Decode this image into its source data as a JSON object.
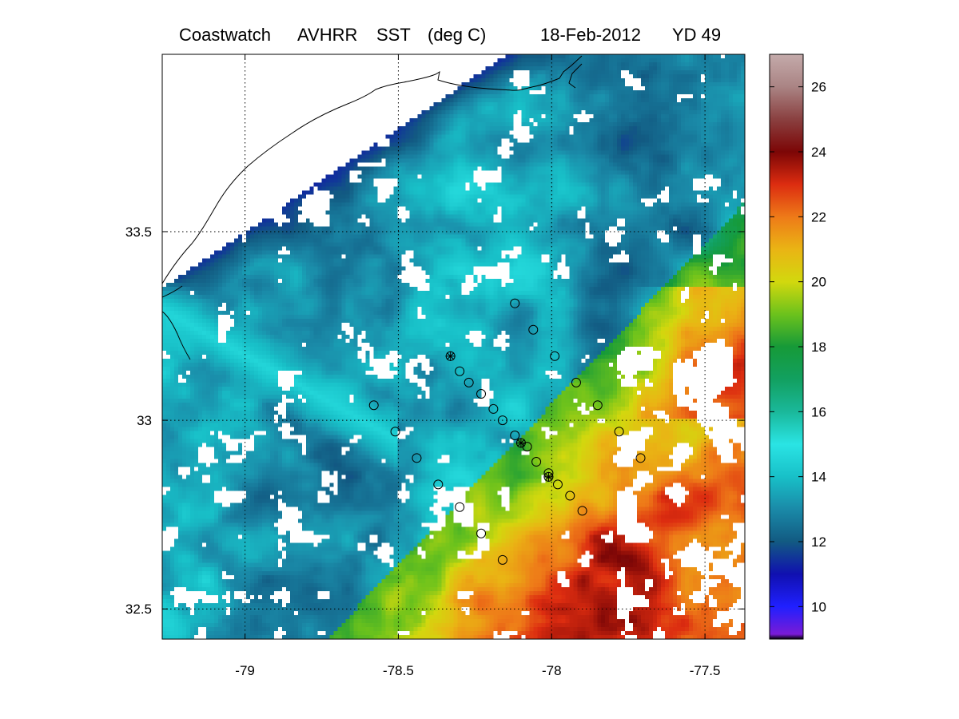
{
  "title": {
    "product": "Coastwatch",
    "sensor": "AVHRR",
    "variable": "SST",
    "units": "(deg C)",
    "date": "18-Feb-2012",
    "yearday": "YD 49"
  },
  "map": {
    "lon_range": [
      -79.27,
      -77.37
    ],
    "lat_range": [
      32.42,
      33.97
    ],
    "lon_ticks": [
      {
        "value": -79,
        "label": "-79"
      },
      {
        "value": -78.5,
        "label": "-78.5"
      },
      {
        "value": -78,
        "label": "-78"
      },
      {
        "value": -77.5,
        "label": "-77.5"
      }
    ],
    "lat_ticks": [
      {
        "value": 33.5,
        "label": "33.5"
      },
      {
        "value": 33,
        "label": "33"
      },
      {
        "value": 32.5,
        "label": "32.5"
      }
    ],
    "grid": "dotted"
  },
  "colorbar": {
    "range": [
      9,
      27
    ],
    "ticks": [
      {
        "value": 10,
        "label": "10"
      },
      {
        "value": 12,
        "label": "12"
      },
      {
        "value": 14,
        "label": "14"
      },
      {
        "value": 16,
        "label": "16"
      },
      {
        "value": 18,
        "label": "18"
      },
      {
        "value": 20,
        "label": "20"
      },
      {
        "value": 22,
        "label": "22"
      },
      {
        "value": 24,
        "label": "24"
      },
      {
        "value": 26,
        "label": "26"
      }
    ],
    "colormap": [
      {
        "v": 9.0,
        "c": "#000000"
      },
      {
        "v": 9.15,
        "c": "#7a1bd6"
      },
      {
        "v": 10.0,
        "c": "#2020ff"
      },
      {
        "v": 11.0,
        "c": "#1010b0"
      },
      {
        "v": 12.0,
        "c": "#125a82"
      },
      {
        "v": 13.0,
        "c": "#1a8aa8"
      },
      {
        "v": 14.0,
        "c": "#18c0c8"
      },
      {
        "v": 15.0,
        "c": "#2ae4e4"
      },
      {
        "v": 16.0,
        "c": "#1ab89a"
      },
      {
        "v": 17.0,
        "c": "#12a060"
      },
      {
        "v": 18.0,
        "c": "#169a38"
      },
      {
        "v": 19.0,
        "c": "#6cc21c"
      },
      {
        "v": 20.0,
        "c": "#d2d80e"
      },
      {
        "v": 21.0,
        "c": "#eab414"
      },
      {
        "v": 22.0,
        "c": "#ee7a18"
      },
      {
        "v": 23.0,
        "c": "#dc2c10"
      },
      {
        "v": 24.0,
        "c": "#7c0606"
      },
      {
        "v": 25.0,
        "c": "#8a4040"
      },
      {
        "v": 26.0,
        "c": "#aa8484"
      },
      {
        "v": 27.0,
        "c": "#c4aaaa"
      }
    ]
  },
  "stations": {
    "circles": [
      [
        -78.12,
        33.31
      ],
      [
        -78.06,
        33.24
      ],
      [
        -77.99,
        33.17
      ],
      [
        -77.92,
        33.1
      ],
      [
        -77.85,
        33.04
      ],
      [
        -77.78,
        32.97
      ],
      [
        -77.71,
        32.9
      ],
      [
        -78.3,
        33.13
      ],
      [
        -78.27,
        33.1
      ],
      [
        -78.23,
        33.07
      ],
      [
        -78.19,
        33.03
      ],
      [
        -78.16,
        33.0
      ],
      [
        -78.12,
        32.96
      ],
      [
        -78.08,
        32.93
      ],
      [
        -78.05,
        32.89
      ],
      [
        -78.01,
        32.86
      ],
      [
        -77.98,
        32.83
      ],
      [
        -77.94,
        32.8
      ],
      [
        -77.9,
        32.76
      ],
      [
        -78.58,
        33.04
      ],
      [
        -78.51,
        32.97
      ],
      [
        -78.44,
        32.9
      ],
      [
        -78.37,
        32.83
      ],
      [
        -78.3,
        32.77
      ],
      [
        -78.23,
        32.7
      ],
      [
        -78.16,
        32.63
      ]
    ],
    "asterisks": [
      [
        -78.33,
        33.17
      ],
      [
        -78.1,
        32.94
      ],
      [
        -78.01,
        32.85
      ]
    ]
  }
}
